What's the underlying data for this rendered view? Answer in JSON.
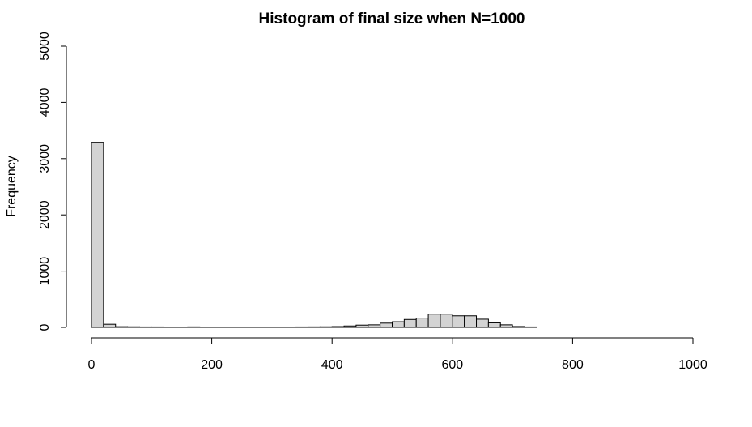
{
  "chart_data": {
    "type": "bar",
    "title": "Histogram of final size when N=1000",
    "xlabel": "",
    "ylabel": "Frequency",
    "xlim": [
      0,
      1000
    ],
    "ylim": [
      0,
      5000
    ],
    "x_ticks": [
      "0",
      "200",
      "400",
      "600",
      "800",
      "1000"
    ],
    "y_ticks": [
      "0",
      "1000",
      "2000",
      "3000",
      "4000",
      "5000"
    ],
    "bin_width": 20,
    "bins": [
      [
        0,
        20,
        3290
      ],
      [
        20,
        40,
        55
      ],
      [
        40,
        60,
        12
      ],
      [
        60,
        80,
        10
      ],
      [
        80,
        100,
        8
      ],
      [
        100,
        120,
        8
      ],
      [
        120,
        140,
        7
      ],
      [
        140,
        160,
        4
      ],
      [
        160,
        180,
        9
      ],
      [
        180,
        200,
        3
      ],
      [
        200,
        220,
        3
      ],
      [
        220,
        240,
        3
      ],
      [
        240,
        260,
        5
      ],
      [
        260,
        280,
        6
      ],
      [
        280,
        300,
        6
      ],
      [
        300,
        320,
        7
      ],
      [
        320,
        340,
        7
      ],
      [
        340,
        360,
        8
      ],
      [
        360,
        380,
        9
      ],
      [
        380,
        400,
        10
      ],
      [
        400,
        420,
        14
      ],
      [
        420,
        440,
        25
      ],
      [
        440,
        460,
        40
      ],
      [
        460,
        480,
        45
      ],
      [
        480,
        500,
        75
      ],
      [
        500,
        520,
        100
      ],
      [
        520,
        540,
        140
      ],
      [
        540,
        560,
        165
      ],
      [
        560,
        580,
        235
      ],
      [
        580,
        600,
        235
      ],
      [
        600,
        620,
        205
      ],
      [
        620,
        640,
        205
      ],
      [
        640,
        660,
        145
      ],
      [
        660,
        680,
        80
      ],
      [
        680,
        700,
        45
      ],
      [
        700,
        720,
        15
      ],
      [
        720,
        740,
        8
      ]
    ],
    "grid": false,
    "legend": "none",
    "bar_color": "#d3d3d3",
    "edge_color": "#000000"
  }
}
